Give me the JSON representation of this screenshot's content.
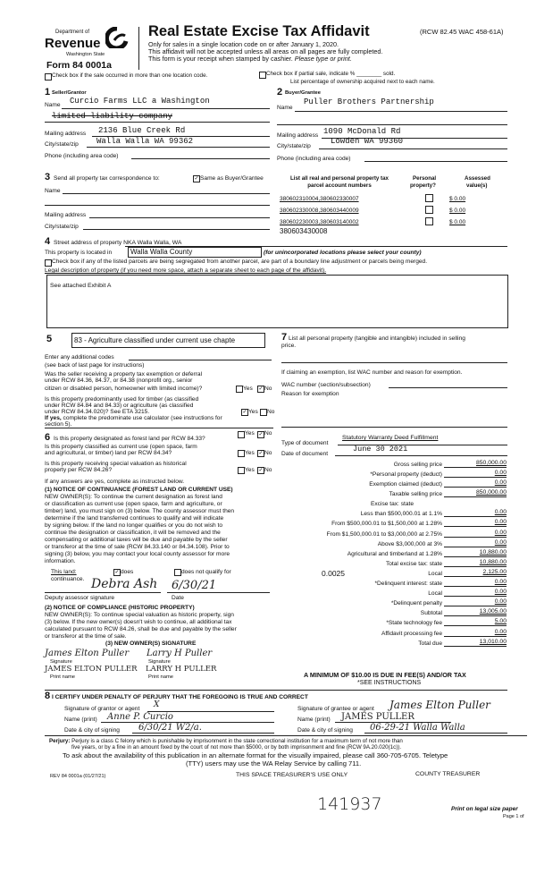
{
  "header": {
    "dept_of": "Department of",
    "revenue": "Revenue",
    "state": "Washington State",
    "form": "Form 84 0001a",
    "title": "Real Estate Excise Tax Affidavit",
    "rcw": "(RCW 82.45 WAC 458-61A)",
    "line1": "Only for sales in a single location code on or after January 1, 2020.",
    "line2": "This affidavit will not be accepted unless all areas on all pages are fully completed.",
    "line3a": "This form is your receipt when stamped by cashier.",
    "line3b": "Please type or print.",
    "multi_loc": "Check box if the sale occurred in more than one location code.",
    "partial": "Check box if partial sale, indicate % ________ sold.",
    "pct_note": "List percentage of ownership acquired next to each name."
  },
  "seller": {
    "num": "1",
    "heading": "Seller/Grantor",
    "name_label": "Name",
    "name1": "Curcio Farms LLC a Washington",
    "name2": "limited liability company",
    "mail_label": "Mailing address",
    "mail": "2136 Blue Creek Rd",
    "city_label": "City/state/zip",
    "city": "Walla Walla WA 99362",
    "phone_label": "Phone (including area code)"
  },
  "buyer": {
    "num": "2",
    "heading": "Buyer/Grantee",
    "name_label": "Name",
    "name": "Puller Brothers Partnership",
    "mail_label": "Mailing address",
    "mail": "1090 McDonald Rd",
    "city_label": "City/state/zip",
    "city": "Lowden WA 99360",
    "phone_label": "Phone (including area code)"
  },
  "corr": {
    "num": "3",
    "label": "Send all property tax correspondence to:",
    "same": "Same as Buyer/Grantee",
    "same_checked": true,
    "name_label": "Name",
    "mail_label": "Mailing address",
    "city_label": "City/state/zip"
  },
  "parcels": {
    "h1": "List all real and personal property tax",
    "h1b": "parcel account numbers",
    "h2": "Personal",
    "h2b": "property?",
    "h3": "Assessed",
    "h3b": "value(s)",
    "rows": [
      {
        "num": "380602310004,380602330007",
        "val": "$ 0.00"
      },
      {
        "num": "380602330008,380603440009",
        "val": "$ 0.00"
      },
      {
        "num": "380602230003,380603140002",
        "val": "$ 0.00"
      }
    ],
    "extra": "380603430008"
  },
  "property": {
    "num": "4",
    "street_label": "Street address of property",
    "street": "NKA Walla Walla, WA",
    "located_label": "This property is located in",
    "county": "Walla Walla County",
    "county_note": "(for unincorporated locations please select your county)",
    "segregated": "Check box if any of the listed parcels are being segregated from another parcel, are part of a boundary line adjustment or parcels being merged.",
    "legal_label": "Legal description of property (if you need more space, attach a separate sheet to each page of the affidavit).",
    "legal": "See attached Exhibit A"
  },
  "s5": {
    "num": "5",
    "code": "83 - Agriculture classified under current use chapte",
    "addl": "Enter any additional codes",
    "see_back": "(see back of last page for instructions)",
    "q1a": "Was the seller receiving a property tax exemption or deferral",
    "q1b": "under RCW 84.36, 84.37, or 84.38 (nonprofit org., senior",
    "q1c": "citizen or disabled person, homeowner with limited income)?",
    "q2a": "Is this property predominantly used for timber (as classified",
    "q2b": "under RCW 84.84 and 84.33) or agriculture (as classified",
    "q2c": "under RCW 84.34.020)? See ETA 3215.",
    "q2d": "If yes,",
    "q2e": "complete the predominate use calculator (see instructions for",
    "q2f": "section 5).",
    "yes": "Yes",
    "no": "No"
  },
  "s6": {
    "num": "6",
    "q1": "Is this property designated as forest land per RCW 84.33?",
    "q2a": "Is this property classified as current use (open space, farm",
    "q2b": "and agricultural, or timber) land per RCW 84.34?",
    "q3a": "Is this property receiving special valuation as historical",
    "q3b": "property per RCW 84.26?",
    "if_yes": "If any answers are yes, complete as instructed below.",
    "n1_head": "(1) NOTICE OF CONTINUANCE (FOREST LAND OR CURRENT USE)",
    "n1": [
      "NEW OWNER(S): To continue the current designation as forest land",
      "or classification as current use (open space, farm and agriculture, or",
      "timber) land, you must sign on (3) below. The county assessor must then",
      "determine if the land transferred continues to qualify and will indicate",
      "by signing below. If the land no longer qualifies or you do not wish to",
      "continue the designation or classification, it will be removed and the",
      "compensating or additional taxes will be due and payable by the seller",
      "or transferor at the time of sale (RCW 84.33.140 or 84.34.108). Prior to",
      "signing (3) below, you may contact your local county assessor for more",
      "information."
    ],
    "this_land": "This land:",
    "does": "does",
    "does_not": "does not qualify for",
    "continuance": "continuance.",
    "assessor_sig": "Deputy assessor signature",
    "date_label": "Date",
    "assessor_date": "6/30/21",
    "n2_head": "(2) NOTICE OF COMPLIANCE (HISTORIC PROPERTY)",
    "n2": [
      "NEW OWNER(S): To continue special valuation as historic property, sign",
      "(3) below. If the new owner(s) doesn't wish to continue, all additional tax",
      "calculated pursuant to RCW 84.26, shall be due and payable by the seller",
      "or transferor at the time of sale."
    ],
    "n3_head": "(3) NEW OWNER(S) SIGNATURE",
    "sig_label": "Signature",
    "print_label": "Print name",
    "sig1": "James Elton Puller",
    "sig2": "Larry H Puller",
    "print1": "JAMES ELTON PULLER",
    "print2": "LARRY H PULLER"
  },
  "s7": {
    "num": "7",
    "label": "List all personal property (tangible and intangible) included in selling",
    "label2": "price.",
    "exempt": "If claiming an exemption, list WAC number and reason for exemption.",
    "wac": "WAC number (section/subsection)",
    "reason": "Reason for exemption",
    "doc_type_label": "Type of document",
    "doc_type": "Statutory Warranty Deed Fulfillment",
    "doc_date_label": "Date of document",
    "doc_date": "June 30 2021"
  },
  "tax": {
    "rows": [
      {
        "label": "Gross selling price",
        "value": "850,000.00"
      },
      {
        "label": "*Personal property (deduct)",
        "value": "0.00"
      },
      {
        "label": "Exemption claimed (deduct)",
        "value": "0.00"
      },
      {
        "label": "Taxable selling price",
        "value": "850,000.00"
      },
      {
        "label": "Excise tax: state",
        "value": ""
      },
      {
        "label": "Less than $500,000.01 at 1.1%",
        "value": "0.00"
      },
      {
        "label": "From $500,000.01 to $1,500,000 at 1.28%",
        "value": "0.00"
      },
      {
        "label": "From $1,500,000.01 to $3,000,000 at 2.75%",
        "value": "0.00"
      },
      {
        "label": "Above $3,000,000 at 3%",
        "value": "0.00"
      },
      {
        "label": "Agricultural and timberland at 1.28%",
        "value": "10,880.00"
      },
      {
        "label": "Total excise tax: state",
        "value": "10,880.00"
      },
      {
        "label": "Local",
        "value": "2,125.00"
      },
      {
        "label": "*Delinquent interest: state",
        "value": "0.00"
      },
      {
        "label": "Local",
        "value": "0.00"
      },
      {
        "label": "*Delinquent penalty",
        "value": "0.00"
      },
      {
        "label": "Subtotal",
        "value": "13,005.00"
      },
      {
        "label": "*State technology fee",
        "value": "5.00"
      },
      {
        "label": "Affidavit processing fee",
        "value": "0.00"
      },
      {
        "label": "Total due",
        "value": "13,010.00"
      }
    ],
    "local_rate": "0.0025",
    "minimum": "A MINIMUM OF $10.00 IS DUE IN FEE(S) AND/OR TAX",
    "see_instr": "*SEE INSTRUCTIONS"
  },
  "s8": {
    "num": "8",
    "certify": "I CERTIFY UNDER PENALTY OF PERJURY THAT THE FOREGOING IS TRUE AND CORRECT",
    "grantor_sig": "Signature of grantor or agent",
    "grantee_sig": "Signature of grantee or agent",
    "name_print": "Name (print)",
    "date_city": "Date & city of signing",
    "grantor_name": "Anne P. Curcio",
    "grantor_date": "6/30/21 W2/a.",
    "grantee_signature": "James Elton Puller",
    "grantee_name": "JAMES PULLER",
    "grantee_date": "06-29-21 Walla Walla",
    "grantor_signature": "X"
  },
  "footer": {
    "perjury_b": "Perjury:",
    "perjury1": "Perjury is a class C felony which is punishable by imprisonment in the state correctional institution for a maximum term of not more than",
    "perjury2": "five years, or by a fine in an amount fixed by the court of not more than $5000, or by both imprisonment and fine (RCW 9A.20.020(1c)).",
    "alt1": "To ask about the availability of this publication in an alternate format for the visually impaired, please call 360-705-6705. Teletype",
    "alt2": "(TTY) users may use the WA Relay Service by calling 711.",
    "rev": "REV 84 0001a (01/27/21)",
    "treas_use": "THIS SPACE TREASURER'S USE ONLY",
    "county_treas": "COUNTY TREASURER",
    "stamp_num": "141937",
    "legal_paper": "Print on legal size paper",
    "page": "Page 1 of"
  }
}
